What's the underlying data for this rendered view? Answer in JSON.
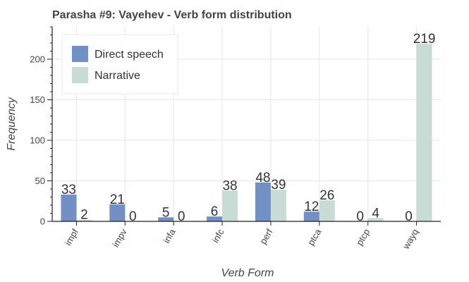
{
  "chart_data": {
    "type": "bar",
    "title": "Parasha #9: Vayehev - Verb form distribution",
    "xlabel": "Verb Form",
    "ylabel": "Frequency",
    "categories": [
      "impf",
      "impv",
      "infa",
      "infc",
      "perf",
      "ptca",
      "ptcp",
      "wayq"
    ],
    "series": [
      {
        "name": "Direct speech",
        "color": "#7390c4",
        "values": [
          33,
          21,
          5,
          6,
          48,
          12,
          0,
          0
        ]
      },
      {
        "name": "Narrative",
        "color": "#c8dbd4",
        "values": [
          2,
          0,
          0,
          38,
          39,
          26,
          4,
          219
        ]
      }
    ],
    "ylim": [
      0,
      240
    ],
    "yticks": [
      0,
      50,
      100,
      150,
      200
    ],
    "grid": true,
    "legend_position": "top-left"
  }
}
